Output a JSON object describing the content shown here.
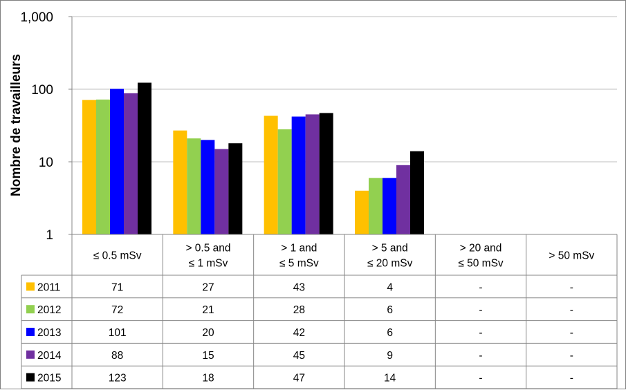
{
  "chart_data": {
    "type": "bar",
    "ylabel": "Nombre de travailleurs",
    "yscale": "log",
    "ylim": [
      1,
      1000
    ],
    "y_ticks": [
      "1",
      "10",
      "100",
      "1,000"
    ],
    "grid": true,
    "legend": "data-table-left",
    "categories": [
      [
        "≤ 0.5 mSv"
      ],
      [
        "> 0.5 and",
        "≤ 1 mSv"
      ],
      [
        "> 1 and",
        "≤ 5 mSv"
      ],
      [
        "> 5 and",
        "≤ 20 mSv"
      ],
      [
        "> 20 and",
        "≤ 50 mSv"
      ],
      [
        "> 50 mSv"
      ]
    ],
    "series": [
      {
        "name": "2011",
        "color": "#FFC000",
        "values": [
          71,
          27,
          43,
          4,
          null,
          null
        ],
        "labels": [
          "71",
          "27",
          "43",
          "4",
          "-",
          "-"
        ]
      },
      {
        "name": "2012",
        "color": "#92D050",
        "values": [
          72,
          21,
          28,
          6,
          null,
          null
        ],
        "labels": [
          "72",
          "21",
          "28",
          "6",
          "-",
          "-"
        ]
      },
      {
        "name": "2013",
        "color": "#0000FF",
        "values": [
          101,
          20,
          42,
          6,
          null,
          null
        ],
        "labels": [
          "101",
          "20",
          "42",
          "6",
          "-",
          "-"
        ]
      },
      {
        "name": "2014",
        "color": "#7030A0",
        "values": [
          88,
          15,
          45,
          9,
          null,
          null
        ],
        "labels": [
          "88",
          "15",
          "45",
          "9",
          "-",
          "-"
        ]
      },
      {
        "name": "2015",
        "color": "#000000",
        "values": [
          123,
          18,
          47,
          14,
          null,
          null
        ],
        "labels": [
          "123",
          "18",
          "47",
          "14",
          "-",
          "-"
        ]
      }
    ]
  }
}
